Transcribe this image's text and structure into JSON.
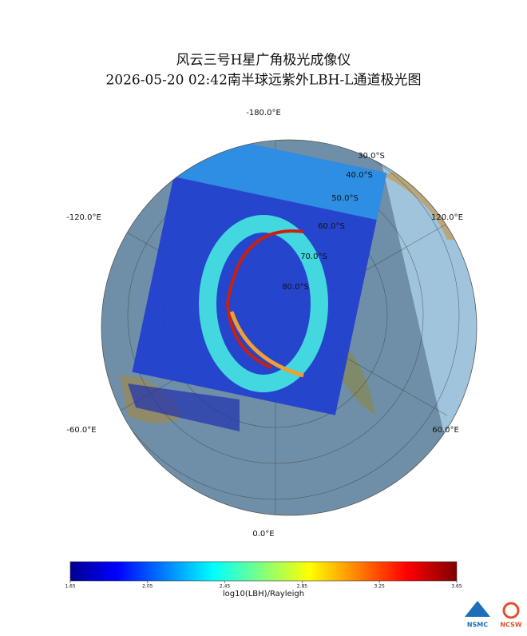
{
  "header": {
    "title": [
      "风云三号H星广角极光成像仪",
      "2026-05-20 02:42南半球远紫外LBH-L通道极光图"
    ]
  },
  "map": {
    "longitude_labels": [
      "-180.0°E",
      "-120.0°E",
      "120.0°E",
      "-60.0°E",
      "60.0°E",
      "0.0°E"
    ],
    "latitude_labels": [
      "30.0°S",
      "40.0°S",
      "50.0°S",
      "60.0°S",
      "70.0°S",
      "80.0°S"
    ]
  },
  "colorbar": {
    "label": "log10(LBH)/Rayleigh",
    "lim": [
      1.65,
      3.65
    ],
    "ticks": [
      1.65,
      2.05,
      2.45,
      2.85,
      3.25,
      3.65
    ]
  },
  "logos": [
    "NSMC",
    "NCSW"
  ]
}
